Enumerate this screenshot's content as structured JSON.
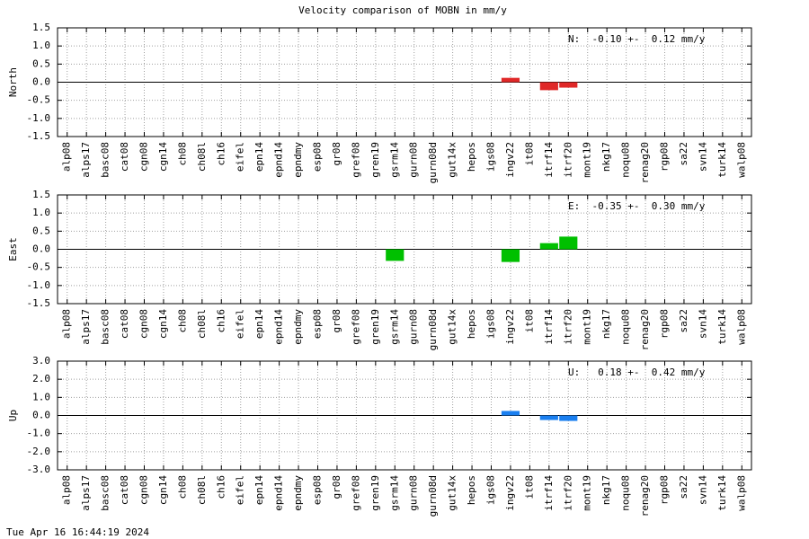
{
  "title": "Velocity comparison of MOBN in mm/y",
  "timestamp": "Tue Apr 16 16:44:19 2024",
  "chart_data": [
    {
      "type": "bar",
      "ylabel": "North",
      "annotation": "N:  -0.10 +-  0.12 mm/y",
      "color": "#e02828",
      "grid": true,
      "categories": [
        "alp08",
        "alps17",
        "basc08",
        "cat08",
        "cgn08",
        "cgn14",
        "ch08",
        "ch08l",
        "ch16",
        "eifel",
        "epn14",
        "epnd14",
        "epndmy",
        "esp08",
        "gr08",
        "gref08",
        "gren19",
        "gsrm14",
        "gurn08",
        "gurn08d",
        "gut14x",
        "hepos",
        "igs08",
        "ingv22",
        "it08",
        "itrf14",
        "itrf20",
        "mont19",
        "nkg17",
        "noqu08",
        "renag20",
        "rgp08",
        "sa22",
        "svn14",
        "turk14",
        "walp08"
      ],
      "values": [
        null,
        null,
        null,
        null,
        null,
        null,
        null,
        null,
        null,
        null,
        null,
        null,
        null,
        null,
        null,
        null,
        null,
        null,
        null,
        null,
        null,
        null,
        null,
        0.12,
        null,
        -0.22,
        -0.15,
        null,
        null,
        null,
        null,
        null,
        null,
        null,
        null,
        null
      ],
      "ylim": [
        -1.5,
        1.5
      ],
      "yticks": [
        -1.5,
        {
          "value": -1,
          "label": "-1.0"
        },
        -0.5,
        {
          "value": 0,
          "label": "0.0"
        },
        0.5,
        {
          "value": 1,
          "label": "1.0"
        },
        1.5
      ]
    },
    {
      "type": "bar",
      "ylabel": "East",
      "annotation": "E:  -0.35 +-  0.30 mm/y",
      "color": "#00c000",
      "grid": true,
      "categories": [
        "alp08",
        "alps17",
        "basc08",
        "cat08",
        "cgn08",
        "cgn14",
        "ch08",
        "ch08l",
        "ch16",
        "eifel",
        "epn14",
        "epnd14",
        "epndmy",
        "esp08",
        "gr08",
        "gref08",
        "gren19",
        "gsrm14",
        "gurn08",
        "gurn08d",
        "gut14x",
        "hepos",
        "igs08",
        "ingv22",
        "it08",
        "itrf14",
        "itrf20",
        "mont19",
        "nkg17",
        "noqu08",
        "renag20",
        "rgp08",
        "sa22",
        "svn14",
        "turk14",
        "walp08"
      ],
      "values": [
        null,
        null,
        null,
        null,
        null,
        null,
        null,
        null,
        null,
        null,
        null,
        null,
        null,
        null,
        null,
        null,
        null,
        -0.32,
        null,
        null,
        null,
        null,
        null,
        -0.35,
        null,
        0.17,
        0.35,
        null,
        null,
        null,
        null,
        null,
        null,
        null,
        null,
        null
      ],
      "ylim": [
        -1.5,
        1.5
      ],
      "yticks": [
        -1.5,
        {
          "value": -1,
          "label": "-1.0"
        },
        -0.5,
        {
          "value": 0,
          "label": "0.0"
        },
        0.5,
        {
          "value": 1,
          "label": "1.0"
        },
        1.5
      ]
    },
    {
      "type": "bar",
      "ylabel": "Up",
      "annotation": "U:   0.18 +-  0.42 mm/y",
      "color": "#1a7ff0",
      "grid": true,
      "categories": [
        "alp08",
        "alps17",
        "basc08",
        "cat08",
        "cgn08",
        "cgn14",
        "ch08",
        "ch08l",
        "ch16",
        "eifel",
        "epn14",
        "epnd14",
        "epndmy",
        "esp08",
        "gr08",
        "gref08",
        "gren19",
        "gsrm14",
        "gurn08",
        "gurn08d",
        "gut14x",
        "hepos",
        "igs08",
        "ingv22",
        "it08",
        "itrf14",
        "itrf20",
        "mont19",
        "nkg17",
        "noqu08",
        "renag20",
        "rgp08",
        "sa22",
        "svn14",
        "turk14",
        "walp08"
      ],
      "values": [
        null,
        null,
        null,
        null,
        null,
        null,
        null,
        null,
        null,
        null,
        null,
        null,
        null,
        null,
        null,
        null,
        null,
        null,
        null,
        null,
        null,
        null,
        null,
        0.25,
        null,
        -0.25,
        -0.3,
        null,
        null,
        null,
        null,
        null,
        null,
        null,
        null,
        null
      ],
      "ylim": [
        -3,
        3
      ],
      "yticks": [
        {
          "value": -3,
          "label": "-3.0"
        },
        {
          "value": -2,
          "label": "-2.0"
        },
        {
          "value": -1,
          "label": "-1.0"
        },
        {
          "value": 0,
          "label": "0.0"
        },
        {
          "value": 1,
          "label": "1.0"
        },
        {
          "value": 2,
          "label": "2.0"
        },
        {
          "value": 3,
          "label": "3.0"
        }
      ]
    }
  ]
}
